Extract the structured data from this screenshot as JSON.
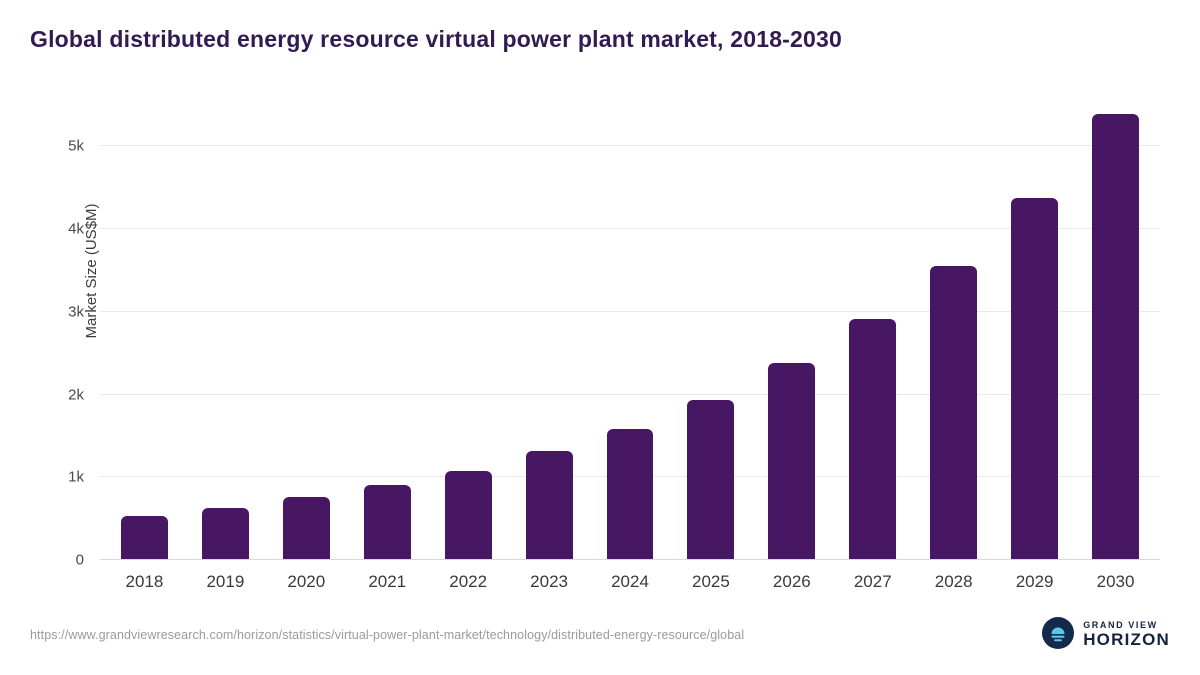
{
  "page": {
    "title": "Global distributed energy resource virtual power plant market, 2018-2030"
  },
  "chart_data": {
    "type": "bar",
    "title": "Global distributed energy resource virtual power plant market, 2018-2030",
    "ylabel": "Market Size (US$M)",
    "xlabel": "",
    "categories": [
      "2018",
      "2019",
      "2020",
      "2021",
      "2022",
      "2023",
      "2024",
      "2025",
      "2026",
      "2027",
      "2028",
      "2029",
      "2030"
    ],
    "values": [
      536,
      628,
      757,
      901,
      1077,
      1312,
      1588,
      1940,
      2378,
      2918,
      3560,
      4382,
      5390
    ],
    "yticks": [
      {
        "label": "0",
        "value": 0
      },
      {
        "label": "1k",
        "value": 1000
      },
      {
        "label": "2k",
        "value": 2000
      },
      {
        "label": "3k",
        "value": 3000
      },
      {
        "label": "4k",
        "value": 4000
      },
      {
        "label": "5k",
        "value": 5000
      }
    ],
    "ylim": [
      0,
      5500
    ],
    "grid": "horizontal",
    "legend": "none",
    "bar_color": "#471763"
  },
  "footer": {
    "source_url": "https://www.grandviewresearch.com/horizon/statistics/virtual-power-plant-market/technology/distributed-energy-resource/global",
    "logo": {
      "line1": "GRAND VIEW",
      "line2": "HORIZON",
      "circle_color": "#132a4c",
      "glyph_color": "#5cc8e8"
    }
  }
}
